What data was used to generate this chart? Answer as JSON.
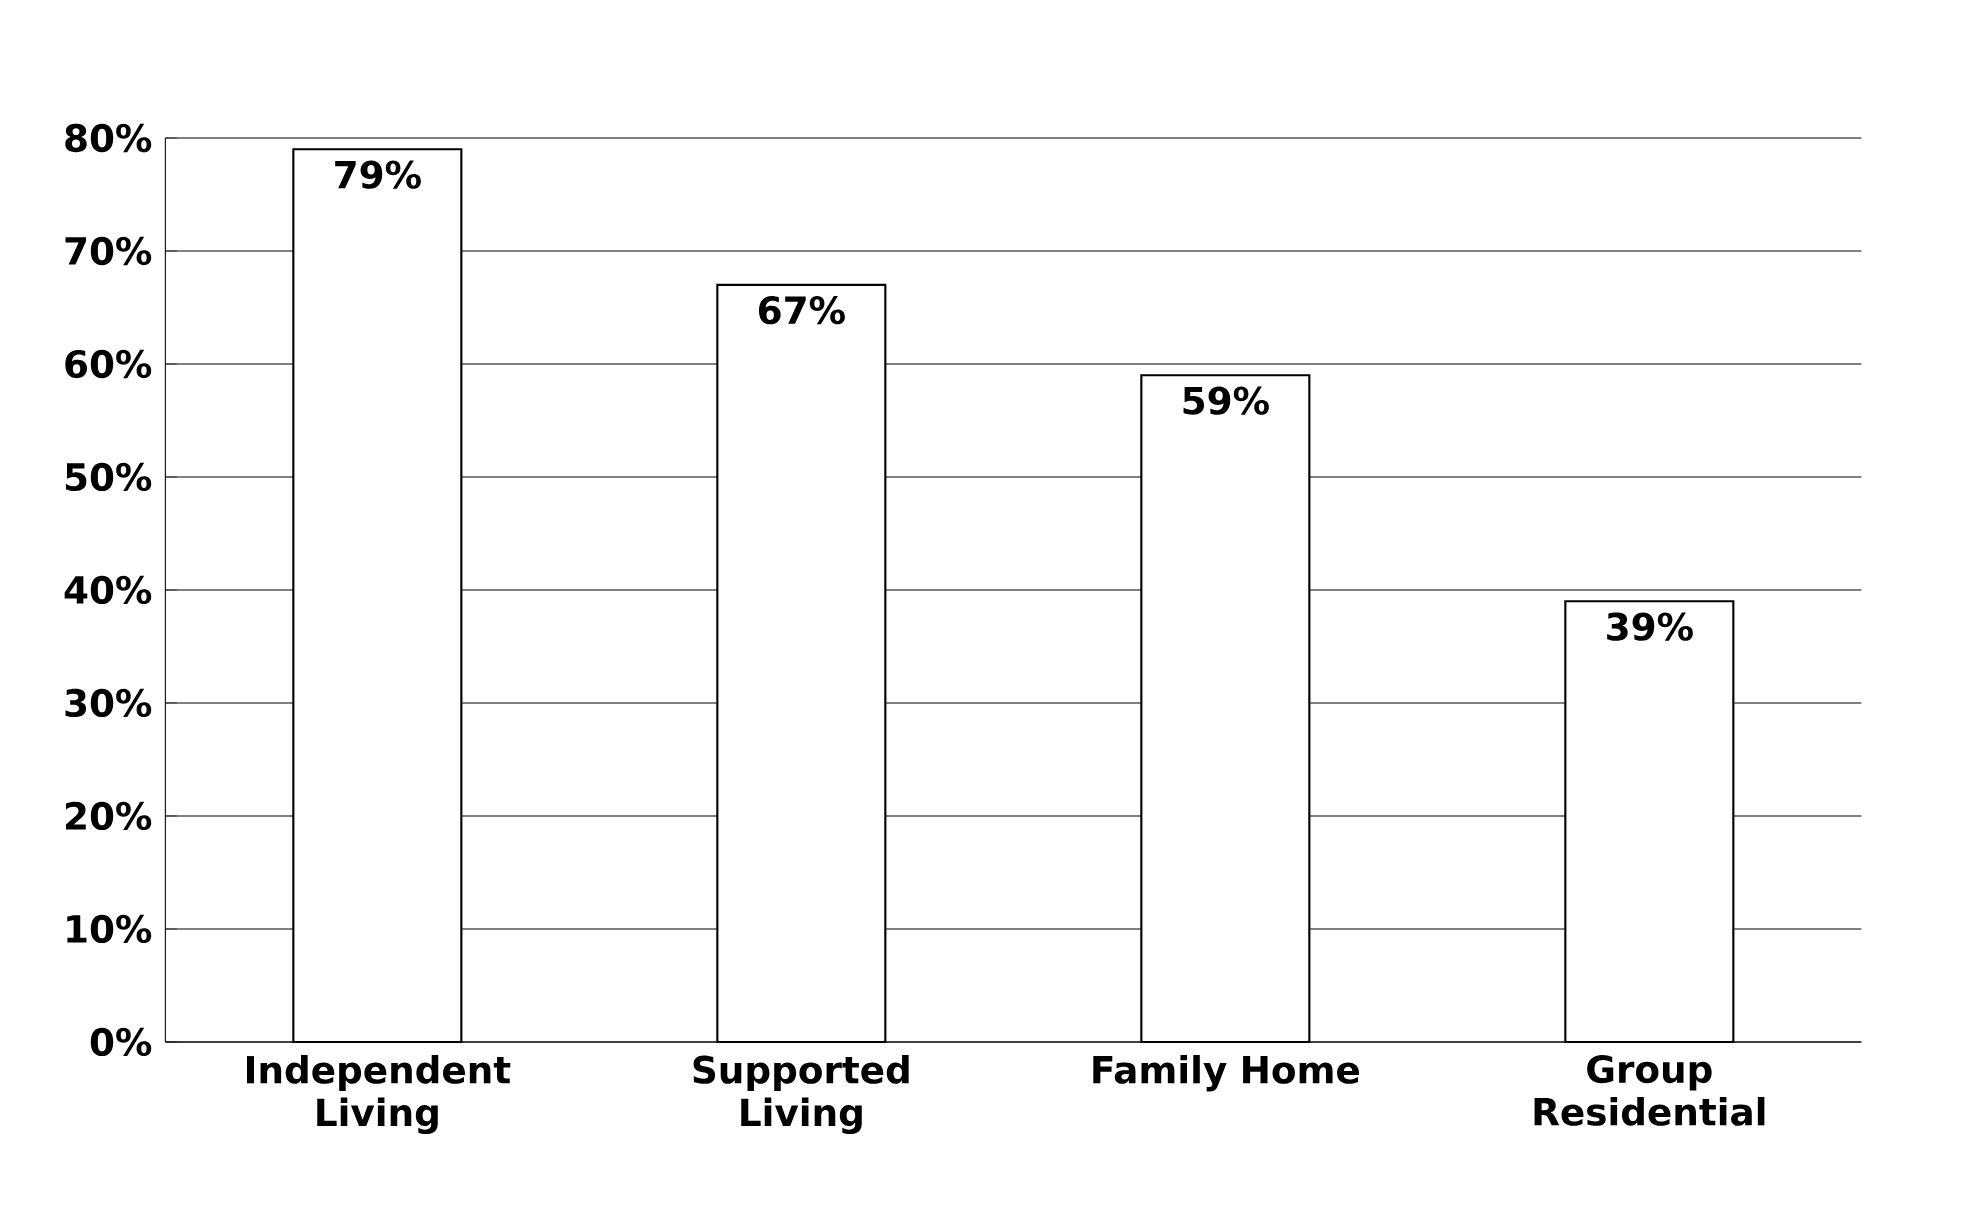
{
  "chart_data": {
    "type": "bar",
    "categories": [
      "Independent Living",
      "Supported Living",
      "Family Home",
      "Group Residential"
    ],
    "values": [
      79,
      67,
      59,
      39
    ],
    "value_labels": [
      "79%",
      "67%",
      "59%",
      "39%"
    ],
    "color": "#ffffff",
    "ylim": [
      0,
      80
    ],
    "yticks": [
      {
        "value": 0,
        "label": "0%"
      },
      {
        "value": 10,
        "label": "10%"
      },
      {
        "value": 20,
        "label": "20%"
      },
      {
        "value": 30,
        "label": "30%"
      },
      {
        "value": 40,
        "label": "40%"
      },
      {
        "value": 50,
        "label": "50%"
      },
      {
        "value": 60,
        "label": "60%"
      },
      {
        "value": 70,
        "label": "70%"
      },
      {
        "value": 80,
        "label": "80%"
      }
    ],
    "grid": "y"
  }
}
